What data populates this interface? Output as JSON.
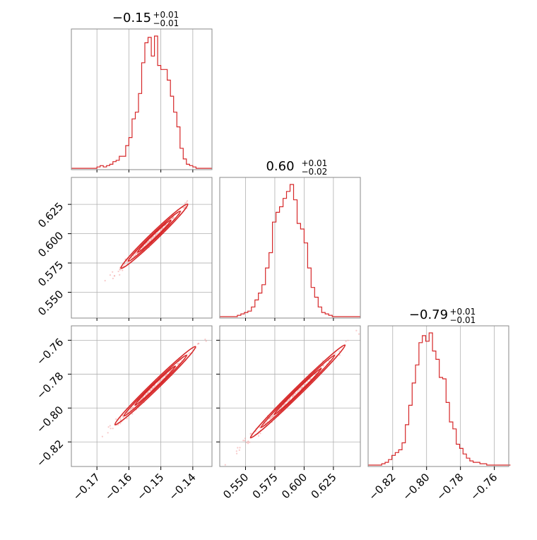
{
  "chart_data": {
    "type": "corner",
    "parameters": [
      {
        "title_value": "−0.15",
        "title_plus": "+0.01",
        "title_minus": "−0.01",
        "range": [
          -0.178,
          -0.134
        ],
        "ticks": [
          -0.17,
          -0.16,
          -0.15,
          -0.14
        ],
        "tick_labels": [
          "−0.17",
          "−0.16",
          "−0.15",
          "−0.14"
        ],
        "hist": {
          "start": -0.178,
          "bin_width": 0.001,
          "counts": [
            1,
            1,
            1,
            1,
            1,
            1,
            1,
            1,
            2,
            3,
            2,
            3,
            4,
            6,
            7,
            10,
            10,
            18,
            24,
            38,
            43,
            57,
            80,
            95,
            99,
            85,
            100,
            78,
            75,
            75,
            67,
            55,
            43,
            32,
            16,
            8,
            4,
            3,
            2,
            1,
            1,
            1,
            1,
            1
          ]
        }
      },
      {
        "title_value": "0.60",
        "title_plus": "+0.01",
        "title_minus": "−0.02",
        "range": [
          0.528,
          0.648
        ],
        "ticks": [
          0.55,
          0.575,
          0.6,
          0.625
        ],
        "tick_labels": [
          "0.550",
          "0.575",
          "0.600",
          "0.625"
        ],
        "hist": {
          "start": 0.528,
          "bin_width": 0.003,
          "counts": [
            1,
            1,
            1,
            1,
            1,
            2,
            3,
            4,
            5,
            8,
            13,
            18,
            24,
            36,
            47,
            69,
            76,
            80,
            86,
            91,
            96,
            85,
            68,
            64,
            54,
            36,
            22,
            15,
            8,
            4,
            3,
            2,
            1,
            1,
            1,
            1,
            1,
            1,
            1,
            1
          ]
        }
      },
      {
        "title_value": "−0.79",
        "title_plus": "+0.01",
        "title_minus": "−0.01",
        "range": [
          -0.8345,
          -0.7515
        ],
        "ticks": [
          -0.82,
          -0.8,
          -0.78,
          -0.76
        ],
        "tick_labels": [
          "−0.82",
          "−0.80",
          "−0.78",
          "−0.76"
        ],
        "hist": {
          "start": -0.8345,
          "bin_width": 0.002,
          "counts": [
            1,
            1,
            1,
            1,
            2,
            3,
            5,
            8,
            10,
            12,
            17,
            30,
            44,
            60,
            73,
            89,
            94,
            90,
            96,
            83,
            77,
            64,
            63,
            46,
            32,
            27,
            16,
            13,
            9,
            6,
            4,
            3,
            3,
            2,
            2,
            1,
            1,
            1,
            1,
            1,
            1,
            1
          ]
        }
      }
    ],
    "pairs": [
      {
        "x_param": 0,
        "y_param": 1,
        "y_ticks": [
          0.55,
          0.575,
          0.6,
          0.625
        ],
        "y_tick_labels": [
          "0.550",
          "0.575",
          "0.600",
          "0.625"
        ],
        "trend": [
          [
            -0.168,
            0.556
          ],
          [
            -0.139,
            0.632
          ]
        ]
      },
      {
        "x_param": 0,
        "y_param": 2,
        "y_ticks": [
          -0.82,
          -0.8,
          -0.78,
          -0.76
        ],
        "y_tick_labels": [
          "−0.82",
          "−0.80",
          "−0.78",
          "−0.76"
        ],
        "trend": [
          [
            -0.171,
            -0.822
          ],
          [
            -0.136,
            -0.758
          ]
        ]
      },
      {
        "x_param": 1,
        "y_param": 2,
        "trend": [
          [
            0.533,
            -0.832
          ],
          [
            0.645,
            -0.756
          ]
        ]
      }
    ],
    "grid": true,
    "color": "#d62728",
    "sample_color": "#f4a6a7"
  }
}
